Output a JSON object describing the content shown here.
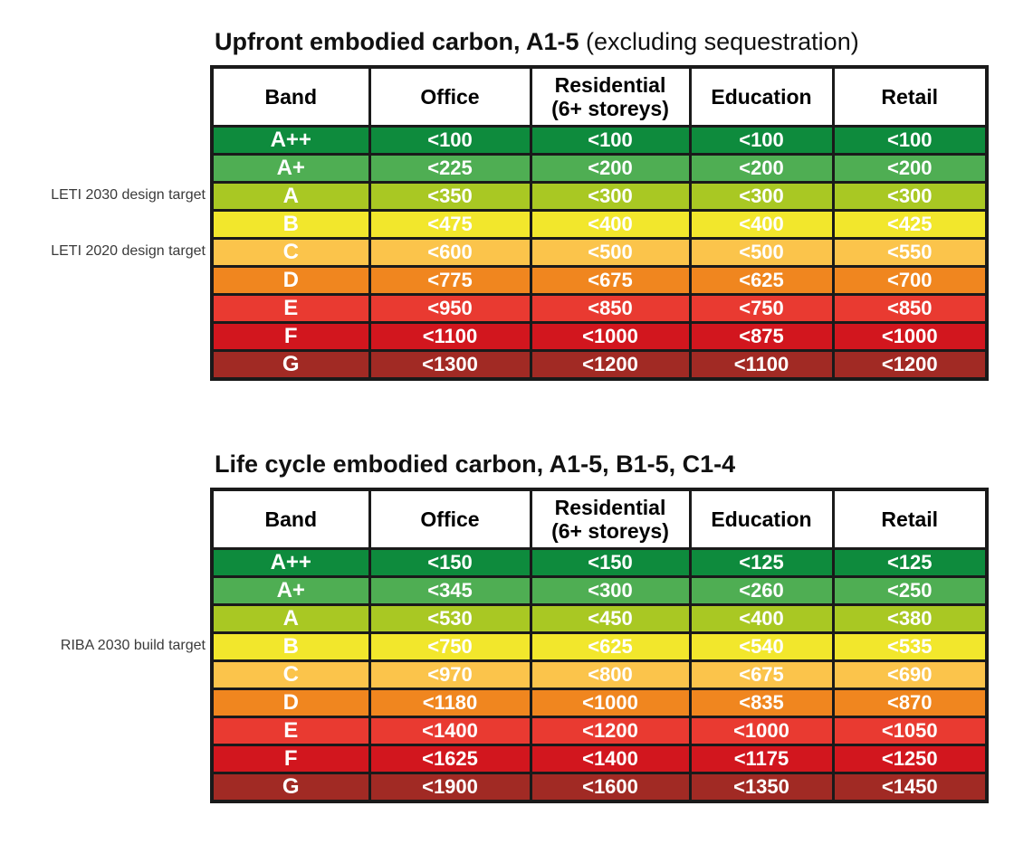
{
  "page": {
    "background": "#ffffff",
    "border_color": "#1a1a1a",
    "header_text_color": "#000000",
    "value_text_color": "#ffffff",
    "side_label_color": "#3a3a3a"
  },
  "chart_data": [
    {
      "type": "table",
      "title_bold": "Upfront embodied carbon, A1-5",
      "title_regular": " (excluding sequestration)",
      "columns": [
        {
          "label": "Band"
        },
        {
          "label": "Office"
        },
        {
          "label": "Residential",
          "sub": "(6+ storeys)"
        },
        {
          "label": "Education"
        },
        {
          "label": "Retail"
        }
      ],
      "side_labels": [
        {
          "text": "LETI 2030 design target",
          "band": "A"
        },
        {
          "text": "LETI 2020 design target",
          "band": "C"
        }
      ],
      "rows": [
        {
          "band": "A++",
          "color": "#0E8B3D",
          "values": [
            "<100",
            "<100",
            "<100",
            "<100"
          ]
        },
        {
          "band": "A+",
          "color": "#4FAE53",
          "values": [
            "<225",
            "<200",
            "<200",
            "<200"
          ]
        },
        {
          "band": "A",
          "color": "#A9C823",
          "values": [
            "<350",
            "<300",
            "<300",
            "<300"
          ]
        },
        {
          "band": "B",
          "color": "#F2E72C",
          "values": [
            "<475",
            "<400",
            "<400",
            "<425"
          ]
        },
        {
          "band": "C",
          "color": "#FBC44B",
          "values": [
            "<600",
            "<500",
            "<500",
            "<550"
          ]
        },
        {
          "band": "D",
          "color": "#F0861F",
          "values": [
            "<775",
            "<675",
            "<625",
            "<700"
          ]
        },
        {
          "band": "E",
          "color": "#E93A31",
          "values": [
            "<950",
            "<850",
            "<750",
            "<850"
          ]
        },
        {
          "band": "F",
          "color": "#D2161E",
          "values": [
            "<1100",
            "<1000",
            "<875",
            "<1000"
          ]
        },
        {
          "band": "G",
          "color": "#A12A24",
          "values": [
            "<1300",
            "<1200",
            "<1100",
            "<1200"
          ]
        }
      ]
    },
    {
      "type": "table",
      "title_bold": "Life cycle embodied carbon, A1-5, B1-5, C1-4",
      "title_regular": "",
      "columns": [
        {
          "label": "Band"
        },
        {
          "label": "Office"
        },
        {
          "label": "Residential",
          "sub": "(6+ storeys)"
        },
        {
          "label": "Education"
        },
        {
          "label": "Retail"
        }
      ],
      "side_labels": [
        {
          "text": "RIBA 2030 build target",
          "band": "B"
        }
      ],
      "rows": [
        {
          "band": "A++",
          "color": "#0E8B3D",
          "values": [
            "<150",
            "<150",
            "<125",
            "<125"
          ]
        },
        {
          "band": "A+",
          "color": "#4FAE53",
          "values": [
            "<345",
            "<300",
            "<260",
            "<250"
          ]
        },
        {
          "band": "A",
          "color": "#A9C823",
          "values": [
            "<530",
            "<450",
            "<400",
            "<380"
          ]
        },
        {
          "band": "B",
          "color": "#F2E72C",
          "values": [
            "<750",
            "<625",
            "<540",
            "<535"
          ]
        },
        {
          "band": "C",
          "color": "#FBC44B",
          "values": [
            "<970",
            "<800",
            "<675",
            "<690"
          ]
        },
        {
          "band": "D",
          "color": "#F0861F",
          "values": [
            "<1180",
            "<1000",
            "<835",
            "<870"
          ]
        },
        {
          "band": "E",
          "color": "#E93A31",
          "values": [
            "<1400",
            "<1200",
            "<1000",
            "<1050"
          ]
        },
        {
          "band": "F",
          "color": "#D2161E",
          "values": [
            "<1625",
            "<1400",
            "<1175",
            "<1250"
          ]
        },
        {
          "band": "G",
          "color": "#A12A24",
          "values": [
            "<1900",
            "<1600",
            "<1350",
            "<1450"
          ]
        }
      ]
    }
  ]
}
